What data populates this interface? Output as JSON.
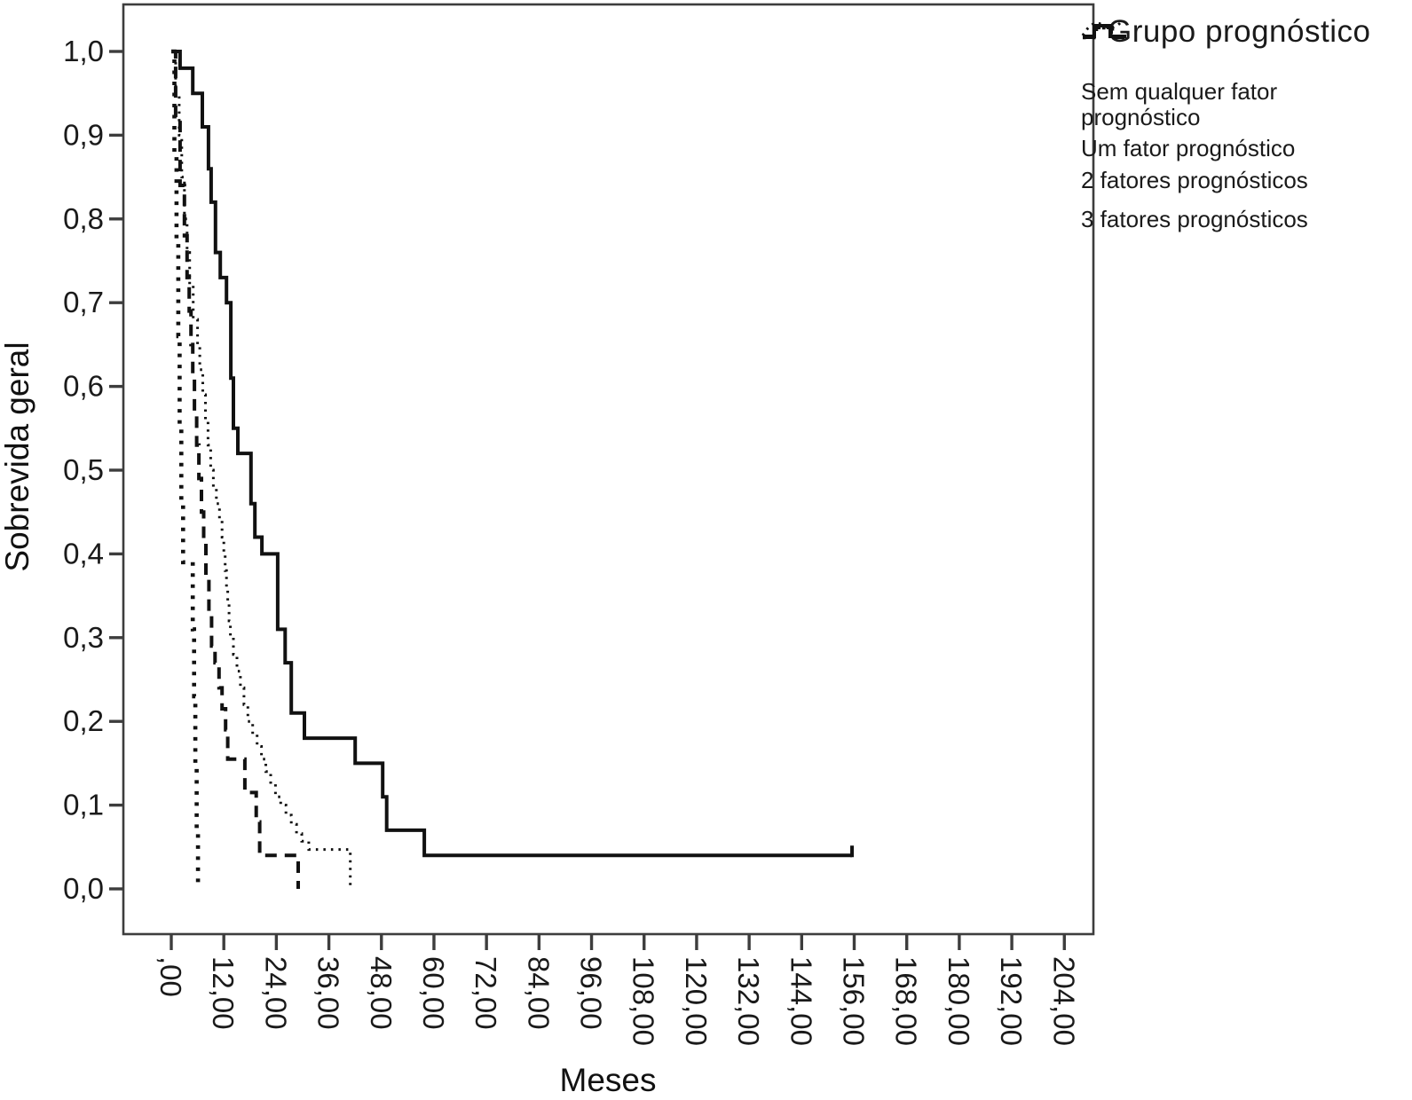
{
  "chart_data": {
    "type": "line",
    "subtype": "kaplan-meier-step",
    "title": "",
    "xlabel": "Meses",
    "ylabel": "Sobrevida geral",
    "xlim": [
      0,
      210
    ],
    "ylim": [
      0.0,
      1.0
    ],
    "grid": false,
    "x_tick_labels": [
      ",00",
      "12,00",
      "24,00",
      "36,00",
      "48,00",
      "60,00",
      "72,00",
      "84,00",
      "96,00",
      "108,00",
      "120,00",
      "132,00",
      "144,00",
      "156,00",
      "168,00",
      "180,00",
      "192,00",
      "204,00"
    ],
    "x_tick_values": [
      0,
      12,
      24,
      36,
      48,
      60,
      72,
      84,
      96,
      108,
      120,
      132,
      144,
      156,
      168,
      180,
      192,
      204
    ],
    "y_tick_labels": [
      "0,0",
      "0,1",
      "0,2",
      "0,3",
      "0,4",
      "0,5",
      "0,6",
      "0,7",
      "0,8",
      "0,9",
      "1,0"
    ],
    "y_tick_values": [
      0,
      0.1,
      0.2,
      0.3,
      0.4,
      0.5,
      0.6,
      0.7,
      0.8,
      0.9,
      1.0
    ],
    "legend": {
      "title": "Grupo prognóstico",
      "position": "top-right-outside"
    },
    "series": [
      {
        "name": "Sem qualquer fator prognóstico",
        "label_lines": [
          "Sem qualquer fator",
          "prognóstico"
        ],
        "style": "solid",
        "end_x": 155.5,
        "censor_at_end": true,
        "points": [
          [
            0,
            1.0
          ],
          [
            2,
            0.98
          ],
          [
            4.9,
            0.95
          ],
          [
            7.1,
            0.91
          ],
          [
            8.5,
            0.86
          ],
          [
            9.1,
            0.82
          ],
          [
            10.1,
            0.76
          ],
          [
            11.2,
            0.73
          ],
          [
            12.6,
            0.7
          ],
          [
            13.6,
            0.61
          ],
          [
            14.2,
            0.55
          ],
          [
            15.2,
            0.52
          ],
          [
            18.2,
            0.46
          ],
          [
            19.1,
            0.42
          ],
          [
            20.7,
            0.4
          ],
          [
            24.3,
            0.31
          ],
          [
            26,
            0.27
          ],
          [
            27.4,
            0.21
          ],
          [
            30.4,
            0.18
          ],
          [
            42,
            0.15
          ],
          [
            48.3,
            0.11
          ],
          [
            49.2,
            0.07
          ],
          [
            57.8,
            0.04
          ]
        ]
      },
      {
        "name": "Um fator prognóstico",
        "label_lines": [
          "Um fator prognóstico"
        ],
        "style": "fine-dotted",
        "end_x": null,
        "censor_at_end": false,
        "points": [
          [
            0,
            1.0
          ],
          [
            1,
            0.95
          ],
          [
            1.8,
            0.9
          ],
          [
            2.4,
            0.85
          ],
          [
            3,
            0.8
          ],
          [
            3.6,
            0.76
          ],
          [
            4.2,
            0.72
          ],
          [
            5,
            0.68
          ],
          [
            6,
            0.65
          ],
          [
            6.5,
            0.62
          ],
          [
            7.2,
            0.59
          ],
          [
            7.8,
            0.56
          ],
          [
            8.4,
            0.53
          ],
          [
            9,
            0.5
          ],
          [
            9.6,
            0.48
          ],
          [
            10.3,
            0.46
          ],
          [
            11,
            0.44
          ],
          [
            11.6,
            0.42
          ],
          [
            12,
            0.4
          ],
          [
            12.3,
            0.38
          ],
          [
            12.6,
            0.36
          ],
          [
            12.9,
            0.34
          ],
          [
            13.2,
            0.32
          ],
          [
            13.5,
            0.3
          ],
          [
            14.2,
            0.28
          ],
          [
            15,
            0.26
          ],
          [
            15.8,
            0.24
          ],
          [
            16.6,
            0.22
          ],
          [
            17.5,
            0.2
          ],
          [
            18.6,
            0.185
          ],
          [
            19.6,
            0.17
          ],
          [
            20.6,
            0.155
          ],
          [
            21.6,
            0.14
          ],
          [
            22.7,
            0.125
          ],
          [
            23.8,
            0.11
          ],
          [
            25,
            0.1
          ],
          [
            26.2,
            0.088
          ],
          [
            27.4,
            0.077
          ],
          [
            28.6,
            0.066
          ],
          [
            29.8,
            0.057
          ],
          [
            31.4,
            0.047
          ],
          [
            40.9,
            0
          ]
        ]
      },
      {
        "name": "2 fatores prognósticos",
        "label_lines": [
          "2 fatores prognósticos"
        ],
        "style": "dashed",
        "end_x": null,
        "censor_at_end": false,
        "points": [
          [
            0,
            1.0
          ],
          [
            1,
            0.92
          ],
          [
            2,
            0.84
          ],
          [
            3,
            0.78
          ],
          [
            3.6,
            0.73
          ],
          [
            4.1,
            0.69
          ],
          [
            4.5,
            0.65
          ],
          [
            4.9,
            0.61
          ],
          [
            5.3,
            0.57
          ],
          [
            5.8,
            0.53
          ],
          [
            6.3,
            0.49
          ],
          [
            6.9,
            0.45
          ],
          [
            7.4,
            0.41
          ],
          [
            7.9,
            0.37
          ],
          [
            8.6,
            0.33
          ],
          [
            9.2,
            0.29
          ],
          [
            10,
            0.27
          ],
          [
            10.9,
            0.24
          ],
          [
            11.6,
            0.215
          ],
          [
            12.4,
            0.19
          ],
          [
            12.9,
            0.155
          ],
          [
            16.8,
            0.115
          ],
          [
            19.4,
            0.08
          ],
          [
            20.2,
            0.04
          ],
          [
            29,
            0
          ]
        ]
      },
      {
        "name": "3 fatores prognósticos",
        "label_lines": [
          "3 fatores prognósticos"
        ],
        "style": "bold-dotted",
        "end_x": null,
        "censor_at_end": false,
        "points": [
          [
            0,
            1.0
          ],
          [
            0.7,
            0.88
          ],
          [
            1.2,
            0.77
          ],
          [
            1.6,
            0.66
          ],
          [
            1.9,
            0.55
          ],
          [
            2.3,
            0.46
          ],
          [
            2.7,
            0.39
          ],
          [
            4.9,
            0.31
          ],
          [
            5.2,
            0.23
          ],
          [
            5.5,
            0.15
          ],
          [
            5.8,
            0.07
          ],
          [
            6.1,
            0
          ]
        ]
      }
    ],
    "colors": {
      "line": "#111111",
      "plot_border": "#3d3d3d",
      "text": "#1a1a1a",
      "background": "#ffffff"
    }
  }
}
